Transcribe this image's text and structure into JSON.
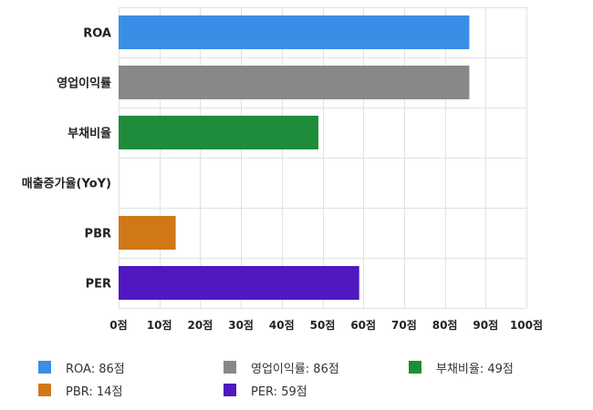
{
  "chart_data": {
    "type": "bar",
    "orientation": "horizontal",
    "categories": [
      "ROA",
      "영업이익률",
      "부채비율",
      "매출증가율(YoY)",
      "PBR",
      "PER"
    ],
    "values": [
      86,
      86,
      49,
      0,
      14,
      59
    ],
    "colors": [
      "#3a8ee6",
      "#888888",
      "#1e8c3a",
      "#3a8ee6",
      "#d07818",
      "#5018c0"
    ],
    "xlim": [
      0,
      100
    ],
    "x_ticks": [
      0,
      10,
      20,
      30,
      40,
      50,
      60,
      70,
      80,
      90,
      100
    ],
    "tick_suffix": "점",
    "grid": true,
    "legend_position": "bottom"
  },
  "legend": [
    {
      "label": "ROA: 86점",
      "color": "#3a8ee6"
    },
    {
      "label": "영업이익률: 86점",
      "color": "#888888"
    },
    {
      "label": "부채비율: 49점",
      "color": "#1e8c3a"
    },
    {
      "label": "PBR: 14점",
      "color": "#d07818"
    },
    {
      "label": "PER: 59점",
      "color": "#5018c0"
    }
  ]
}
